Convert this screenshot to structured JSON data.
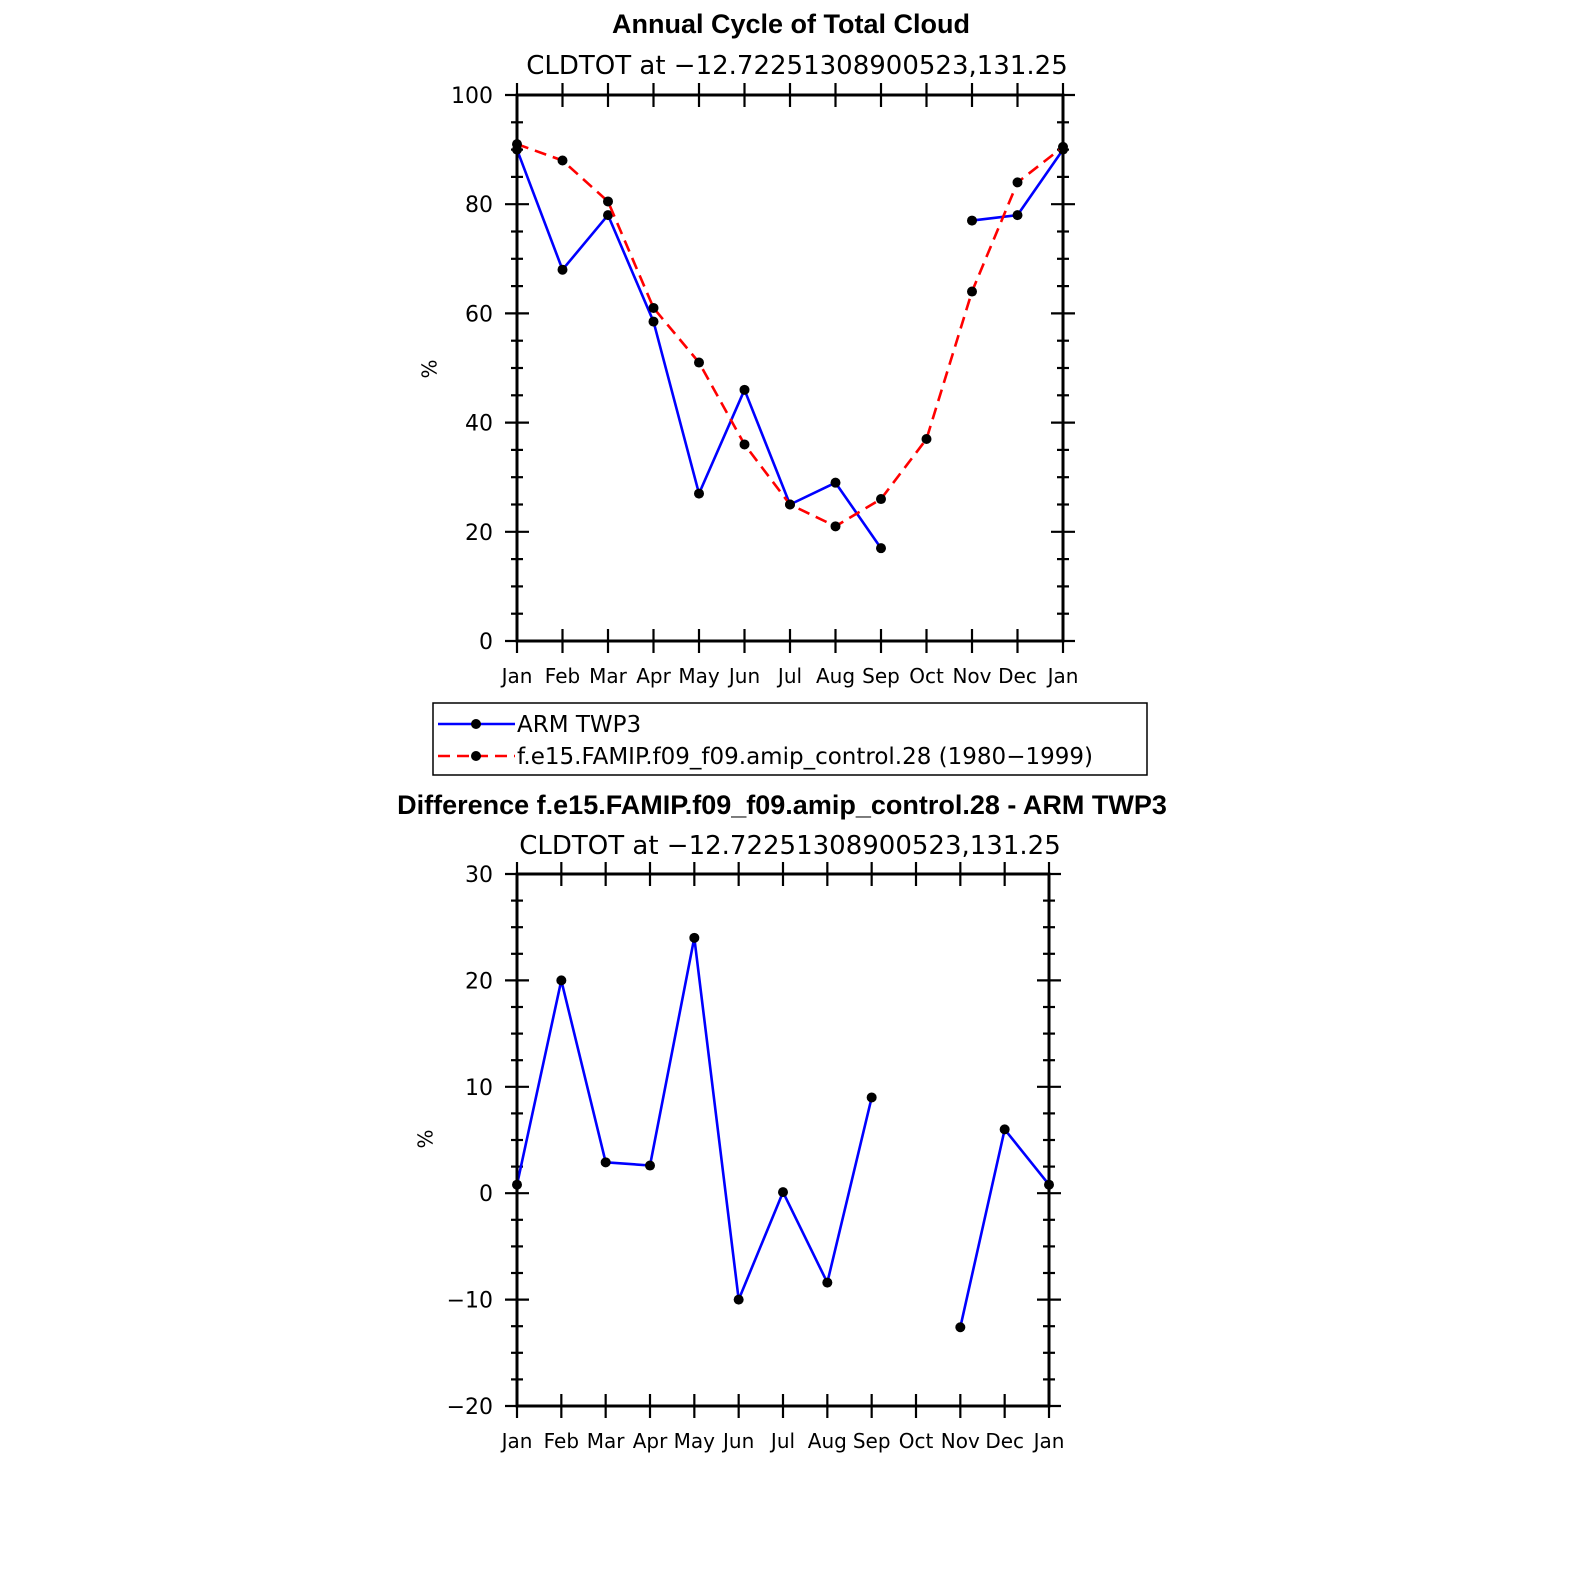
{
  "chart_data": [
    {
      "type": "line",
      "title": "Annual Cycle of Total Cloud",
      "subtitle": "CLDTOT at −12.72251308900523,131.25",
      "ylabel": "%",
      "xlabel": "",
      "categories": [
        "Jan",
        "Feb",
        "Mar",
        "Apr",
        "May",
        "Jun",
        "Jul",
        "Aug",
        "Sep",
        "Oct",
        "Nov",
        "Dec",
        "Jan"
      ],
      "ylim": [
        0,
        100
      ],
      "yticks": [
        "0",
        "20",
        "40",
        "60",
        "80",
        "100"
      ],
      "yticks_values": [
        0,
        20,
        40,
        60,
        80,
        100
      ],
      "grid": false,
      "legend_position": "bottom",
      "series": [
        {
          "name": "ARM TWP3",
          "color": "#0000ff",
          "dash": "solid",
          "values": [
            90,
            68,
            78,
            58.5,
            27,
            46,
            25,
            29,
            17,
            null,
            77,
            78,
            90
          ]
        },
        {
          "name": "f.e15.FAMIP.f09_f09.amip_control.28 (1980−1999)",
          "color": "#ff0000",
          "dash": "dashed",
          "values": [
            91,
            88,
            80.5,
            61,
            51,
            36,
            25,
            21,
            26,
            37,
            64,
            84,
            90.5
          ]
        }
      ]
    },
    {
      "type": "line",
      "title": "Difference f.e15.FAMIP.f09_f09.amip_control.28 - ARM TWP3",
      "subtitle": "CLDTOT at −12.72251308900523,131.25",
      "ylabel": "%",
      "xlabel": "",
      "categories": [
        "Jan",
        "Feb",
        "Mar",
        "Apr",
        "May",
        "Jun",
        "Jul",
        "Aug",
        "Sep",
        "Oct",
        "Nov",
        "Dec",
        "Jan"
      ],
      "ylim": [
        -20,
        30
      ],
      "yticks": [
        "−20",
        "−10",
        "0",
        "10",
        "20",
        "30"
      ],
      "yticks_values": [
        -20,
        -10,
        0,
        10,
        20,
        30
      ],
      "grid": false,
      "series": [
        {
          "color": "#0000ff",
          "dash": "solid",
          "values": [
            0.8,
            20,
            2.9,
            2.6,
            24,
            -10,
            0.1,
            -8.4,
            9,
            null,
            -12.6,
            6,
            0.8
          ]
        }
      ]
    }
  ]
}
